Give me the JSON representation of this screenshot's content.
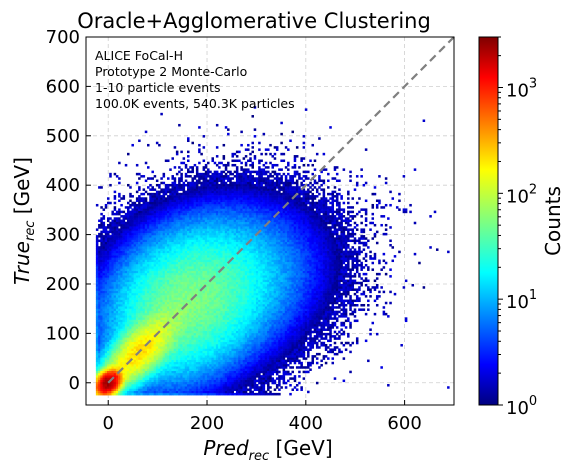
{
  "chart_data": {
    "type": "heatmap",
    "title": "Oracle+Agglomerative Clustering",
    "xlabel": {
      "main": "Pred",
      "sub": "rec",
      "unit": " [GeV]"
    },
    "ylabel": {
      "main": "True",
      "sub": "rec",
      "unit": " [GeV]"
    },
    "xlim": [
      -45,
      700
    ],
    "ylim": [
      -45,
      700
    ],
    "xticks": [
      0,
      200,
      400,
      600
    ],
    "yticks": [
      0,
      100,
      200,
      300,
      400,
      500,
      600,
      700
    ],
    "grid": true,
    "annotations": [
      "ALICE FoCal-H",
      "Prototype 2 Monte-Carlo",
      "1-10 particle events",
      "100.0K events, 540.3K particles"
    ],
    "reference_line": {
      "style": "dashed",
      "color": "#808080",
      "points": [
        [
          0,
          0
        ],
        [
          700,
          700
        ]
      ]
    },
    "colorbar": {
      "label": "Counts",
      "scale": "log",
      "range": [
        1,
        3000
      ],
      "colormap": "jet",
      "ticks": [
        {
          "value": 1,
          "base": "10",
          "exp": "0"
        },
        {
          "value": 10,
          "base": "10",
          "exp": "1"
        },
        {
          "value": 100,
          "base": "10",
          "exp": "2"
        },
        {
          "value": 1000,
          "base": "10",
          "exp": "3"
        }
      ]
    },
    "density_model": {
      "x_range": [
        -25,
        690
      ],
      "y_range": [
        -25,
        580
      ],
      "components": [
        {
          "weight": 2600,
          "mu": [
            0,
            0
          ],
          "sigma_along": 14,
          "sigma_across": 10,
          "angle_deg": 45
        },
        {
          "weight": 180,
          "mu": [
            60,
            60
          ],
          "sigma_along": 50,
          "sigma_across": 22,
          "angle_deg": 45
        },
        {
          "weight": 40,
          "mu": [
            150,
            150
          ],
          "sigma_along": 90,
          "sigma_across": 70,
          "angle_deg": 45
        },
        {
          "weight": 18,
          "mu": [
            220,
            200
          ],
          "sigma_along": 110,
          "sigma_across": 80,
          "angle_deg": 20
        }
      ],
      "edge_streaks": [
        {
          "axis": "x",
          "value": -25,
          "extent": [
            0,
            300
          ],
          "weight": 6
        },
        {
          "axis": "y",
          "value": -25,
          "extent": [
            0,
            350
          ],
          "weight": 6
        }
      ]
    }
  }
}
